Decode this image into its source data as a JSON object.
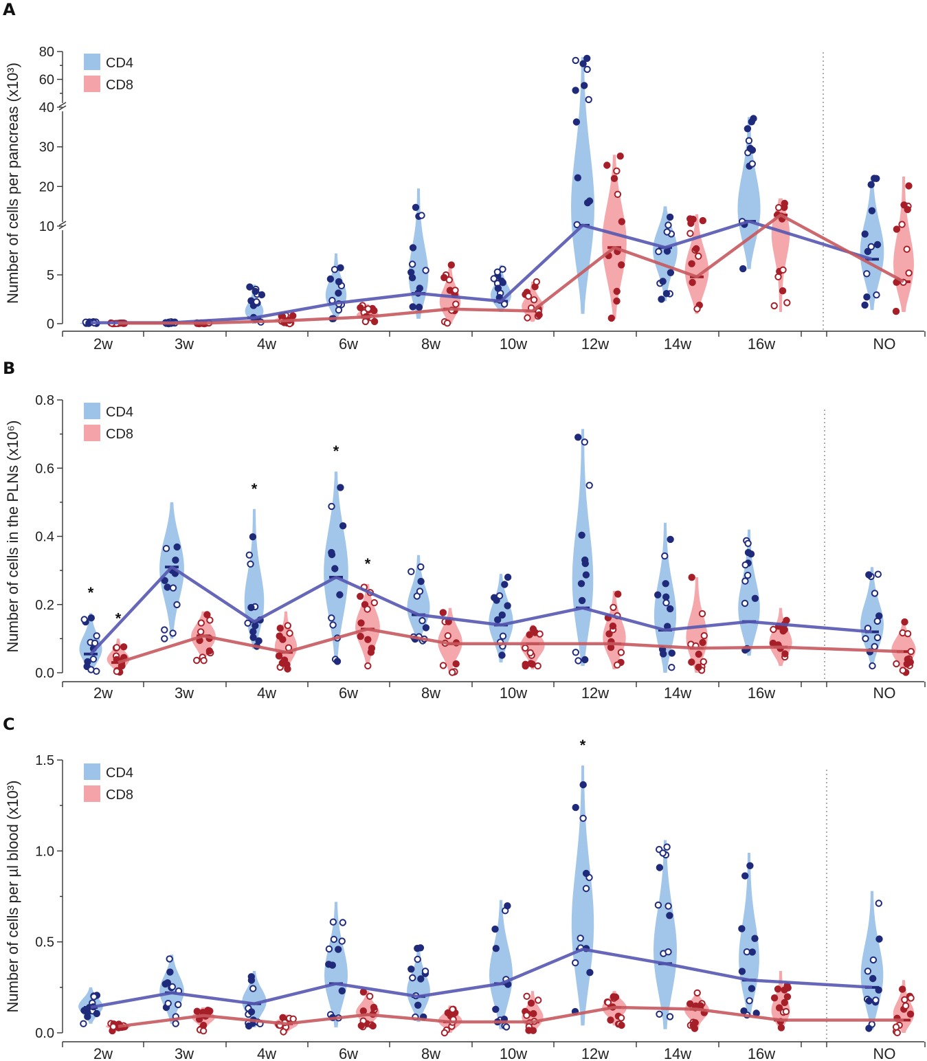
{
  "colors": {
    "cd4_fill": "#9dc3e8",
    "cd4_point": "#1f2a7a",
    "cd4_line": "#5556b0",
    "cd8_fill": "#f4a3a8",
    "cd8_point": "#a61f28",
    "cd8_line": "#c7595e"
  },
  "chart_data": [
    {
      "panel": "A",
      "type": "violin",
      "ylabel": "Number of cells per pancreas (x10³)",
      "ylabel_superscript": "3",
      "categories": [
        "2w",
        "3w",
        "4w",
        "6w",
        "8w",
        "10w",
        "12w",
        "14w",
        "16w",
        "NO"
      ],
      "y_broken_axis": true,
      "y_segments": [
        {
          "range": [
            0,
            10
          ],
          "ticks": [
            "0",
            "5",
            "10"
          ]
        },
        {
          "range": [
            10,
            40
          ],
          "ticks": [
            "20",
            "30",
            "40"
          ]
        },
        {
          "range": [
            40,
            80
          ],
          "ticks": [
            "60",
            "80"
          ]
        }
      ],
      "legend": [
        "CD4",
        "CD8"
      ],
      "significance": [],
      "series": [
        {
          "name": "CD4",
          "medians": [
            0.1,
            0.1,
            0.6,
            2.1,
            3.1,
            2.3,
            10.2,
            7.8,
            11.2,
            6.6
          ],
          "ranges": [
            [
              0,
              0.2
            ],
            [
              0,
              0.2
            ],
            [
              0,
              4
            ],
            [
              0.5,
              7.2
            ],
            [
              0.5,
              19.5
            ],
            [
              1.2,
              6.0
            ],
            [
              1.0,
              76
            ],
            [
              2.3,
              15
            ],
            [
              5.6,
              37.5
            ],
            [
              1.4,
              22.5
            ]
          ]
        },
        {
          "name": "CD8",
          "medians": [
            0.05,
            0.05,
            0.3,
            0.7,
            1.5,
            1.3,
            7.8,
            4.8,
            12.8,
            4.3
          ],
          "ranges": [
            [
              0,
              0.1
            ],
            [
              0,
              0.1
            ],
            [
              0,
              0.9
            ],
            [
              0.2,
              2.0
            ],
            [
              0,
              6.2
            ],
            [
              0.2,
              4.3
            ],
            [
              0.5,
              28
            ],
            [
              1.0,
              13
            ],
            [
              1.2,
              17
            ],
            [
              1.2,
              22.5
            ]
          ]
        }
      ]
    },
    {
      "panel": "B",
      "type": "violin",
      "ylabel": "Number of cells in the PLNs (x10⁶)",
      "ylabel_superscript": "6",
      "categories": [
        "2w",
        "3w",
        "4w",
        "6w",
        "8w",
        "10w",
        "12w",
        "14w",
        "16w",
        "NO"
      ],
      "ylim": [
        0,
        0.8
      ],
      "yticks": [
        "0.0",
        "0.2",
        "0.4",
        "0.6",
        "0.8"
      ],
      "legend": [
        "CD4",
        "CD8"
      ],
      "significance": [
        {
          "category": "2w",
          "series": "CD4"
        },
        {
          "category": "2w",
          "series": "CD8"
        },
        {
          "category": "4w",
          "series": "CD4"
        },
        {
          "category": "6w",
          "series": "CD4"
        },
        {
          "category": "6w",
          "series": "CD8"
        }
      ],
      "series": [
        {
          "name": "CD4",
          "medians": [
            0.055,
            0.31,
            0.15,
            0.28,
            0.17,
            0.14,
            0.19,
            0.125,
            0.15,
            0.12
          ],
          "ranges": [
            [
              0,
              0.175
            ],
            [
              0.1,
              0.5
            ],
            [
              0.07,
              0.48
            ],
            [
              0.03,
              0.59
            ],
            [
              0.09,
              0.345
            ],
            [
              0.03,
              0.29
            ],
            [
              0.02,
              0.715
            ],
            [
              0,
              0.44
            ],
            [
              0.05,
              0.42
            ],
            [
              0.02,
              0.31
            ]
          ]
        },
        {
          "name": "CD8",
          "medians": [
            0.03,
            0.108,
            0.06,
            0.128,
            0.085,
            0.085,
            0.085,
            0.072,
            0.075,
            0.062
          ],
          "ranges": [
            [
              0,
              0.1
            ],
            [
              0.03,
              0.18
            ],
            [
              0.01,
              0.18
            ],
            [
              0.02,
              0.26
            ],
            [
              0,
              0.19
            ],
            [
              0.01,
              0.14
            ],
            [
              0.01,
              0.24
            ],
            [
              0,
              0.28
            ],
            [
              0.02,
              0.19
            ],
            [
              0,
              0.15
            ]
          ]
        }
      ]
    },
    {
      "panel": "C",
      "type": "violin",
      "ylabel": "Number of cells per µl blood (x10³)",
      "ylabel_superscript": "3",
      "categories": [
        "2w",
        "3w",
        "4w",
        "6w",
        "8w",
        "10w",
        "12w",
        "14w",
        "16w",
        "NO"
      ],
      "ylim": [
        0,
        1.5
      ],
      "yticks": [
        "0.0",
        "0.5",
        "1.0",
        "1.5"
      ],
      "legend": [
        "CD4",
        "CD8"
      ],
      "significance": [
        {
          "category": "12w",
          "series": "CD4"
        }
      ],
      "series": [
        {
          "name": "CD4",
          "medians": [
            0.14,
            0.22,
            0.16,
            0.27,
            0.2,
            0.27,
            0.46,
            0.38,
            0.29,
            0.25
          ],
          "ranges": [
            [
              0.05,
              0.25
            ],
            [
              0.05,
              0.43
            ],
            [
              0.03,
              0.34
            ],
            [
              0.03,
              0.72
            ],
            [
              0.06,
              0.47
            ],
            [
              0.02,
              0.73
            ],
            [
              0.04,
              1.47
            ],
            [
              0.02,
              1.06
            ],
            [
              0.09,
              0.99
            ],
            [
              0.02,
              0.78
            ]
          ]
        },
        {
          "name": "CD8",
          "medians": [
            0.035,
            0.095,
            0.05,
            0.1,
            0.06,
            0.06,
            0.14,
            0.13,
            0.07,
            0.07
          ],
          "ranges": [
            [
              0.01,
              0.06
            ],
            [
              0.01,
              0.14
            ],
            [
              0,
              0.1
            ],
            [
              0.03,
              0.23
            ],
            [
              0,
              0.15
            ],
            [
              0,
              0.23
            ],
            [
              0.04,
              0.23
            ],
            [
              0.02,
              0.22
            ],
            [
              0.02,
              0.34
            ],
            [
              0,
              0.29
            ]
          ]
        }
      ]
    }
  ]
}
